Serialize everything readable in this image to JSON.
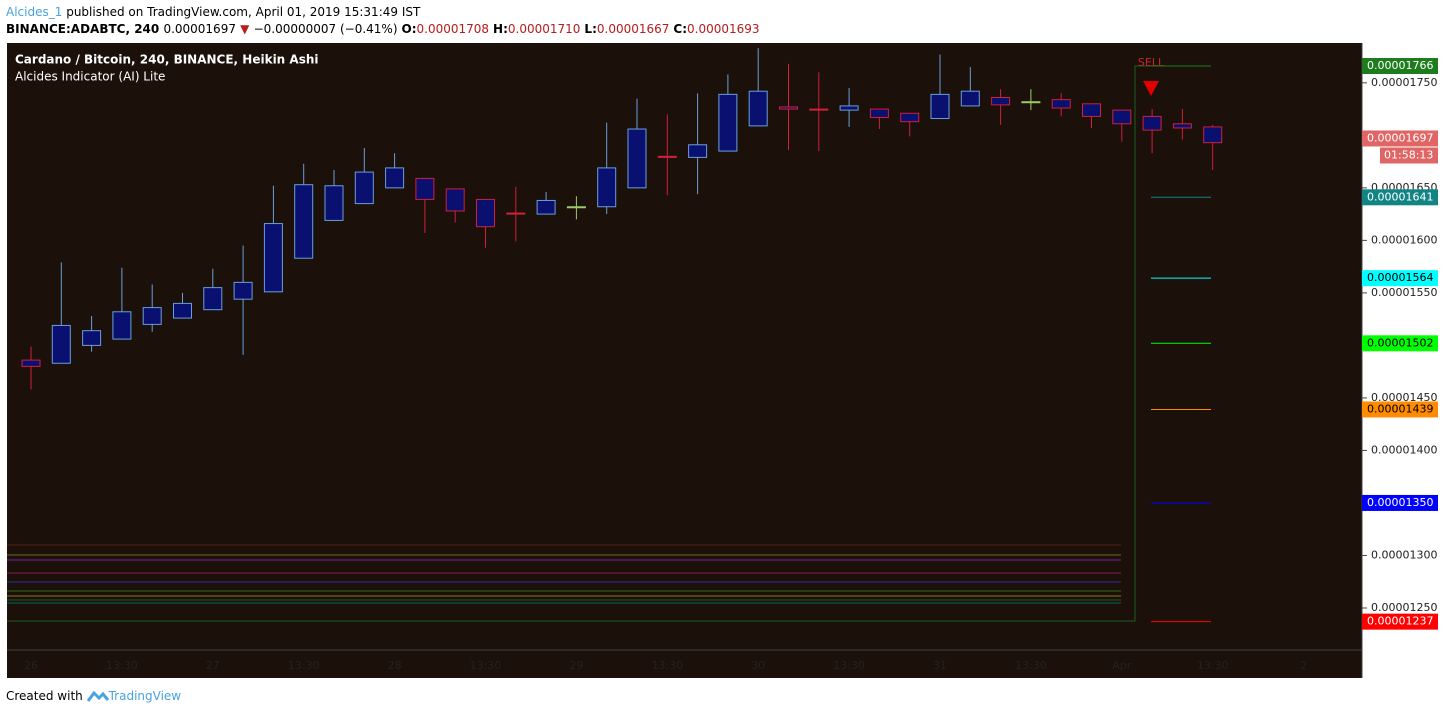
{
  "header": {
    "author": "Alcides_1",
    "published": "published on TradingView.com, April 01, 2019 15:31:49 IST",
    "symbol": "BINANCE:ADABTC, 240",
    "last": "0.00001697",
    "arrow": "▼",
    "change": "−0.00000007 (−0.41%)",
    "ohlc": [
      {
        "label": "O:",
        "value": "0.00001708"
      },
      {
        "label": "H:",
        "value": "0.00001710"
      },
      {
        "label": "L:",
        "value": "0.00001667"
      },
      {
        "label": "C:",
        "value": "0.00001693"
      }
    ]
  },
  "legend": [
    "Cardano / Bitcoin, 240, BINANCE, Heikin Ashi",
    "Alcides Indicator (AI) Lite"
  ],
  "footer": {
    "text": "Created with",
    "brand": "TradingView"
  },
  "chart_data": {
    "type": "candlestick",
    "categories": [
      "26",
      null,
      null,
      "13:30",
      null,
      null,
      "27",
      null,
      null,
      "13:30",
      null,
      null,
      "28",
      null,
      null,
      "13:30",
      null,
      null,
      "29",
      null,
      null,
      "13:30",
      null,
      null,
      "30",
      null,
      null,
      "13:30",
      null,
      null,
      "31",
      null,
      null,
      "13:30",
      null,
      null,
      "Apr",
      null,
      null,
      "13:30",
      null,
      null,
      "2"
    ],
    "open": [
      1.486e-05,
      1.483e-05,
      1.5e-05,
      1.506e-05,
      1.52e-05,
      1.526e-05,
      1.534e-05,
      1.544e-05,
      1.551e-05,
      1.583e-05,
      1.619e-05,
      1.635e-05,
      1.65e-05,
      1.659e-05,
      1.649e-05,
      1.639e-05,
      1.626e-05,
      1.625e-05,
      1.632e-05,
      1.632e-05,
      1.65e-05,
      1.68e-05,
      1.679e-05,
      1.685e-05,
      1.709e-05,
      1.727e-05,
      1.725e-05,
      1.724e-05,
      1.725e-05,
      1.721e-05,
      1.716e-05,
      1.728e-05,
      1.736e-05,
      1.732e-05,
      1.734e-05,
      1.73e-05,
      1.724e-05,
      1.718e-05,
      1.711e-05,
      1.708e-05,
      null,
      null,
      null
    ],
    "high": [
      1.499e-05,
      1.579e-05,
      1.528e-05,
      1.574e-05,
      1.558e-05,
      1.55e-05,
      1.573e-05,
      1.595e-05,
      1.652e-05,
      1.673e-05,
      1.667e-05,
      1.688e-05,
      1.683e-05,
      1.659e-05,
      1.649e-05,
      1.639e-05,
      1.651e-05,
      1.646e-05,
      1.642e-05,
      1.712e-05,
      1.735e-05,
      1.72e-05,
      1.74e-05,
      1.758e-05,
      1.783e-05,
      1.768e-05,
      1.76e-05,
      1.745e-05,
      1.725e-05,
      1.721e-05,
      1.777e-05,
      1.765e-05,
      1.744e-05,
      1.744e-05,
      1.74e-05,
      1.73e-05,
      1.724e-05,
      1.725e-05,
      1.725e-05,
      1.71e-05,
      null,
      null,
      null
    ],
    "low": [
      1.458e-05,
      1.483e-05,
      1.494e-05,
      1.506e-05,
      1.513e-05,
      1.526e-05,
      1.534e-05,
      1.491e-05,
      1.551e-05,
      1.583e-05,
      1.619e-05,
      1.635e-05,
      1.65e-05,
      1.607e-05,
      1.617e-05,
      1.593e-05,
      1.599e-05,
      1.625e-05,
      1.62e-05,
      1.625e-05,
      1.65e-05,
      1.643e-05,
      1.644e-05,
      1.685e-05,
      1.709e-05,
      1.686e-05,
      1.685e-05,
      1.708e-05,
      1.706e-05,
      1.699e-05,
      1.716e-05,
      1.728e-05,
      1.71e-05,
      1.724e-05,
      1.718e-05,
      1.707e-05,
      1.694e-05,
      1.683e-05,
      1.696e-05,
      1.667e-05,
      null,
      null,
      null
    ],
    "close": [
      1.48e-05,
      1.519e-05,
      1.514e-05,
      1.532e-05,
      1.536e-05,
      1.54e-05,
      1.555e-05,
      1.56e-05,
      1.616e-05,
      1.653e-05,
      1.652e-05,
      1.665e-05,
      1.669e-05,
      1.639e-05,
      1.628e-05,
      1.613e-05,
      1.625e-05,
      1.638e-05,
      1.632e-05,
      1.669e-05,
      1.706e-05,
      1.679e-05,
      1.691e-05,
      1.739e-05,
      1.742e-05,
      1.725e-05,
      1.724e-05,
      1.728e-05,
      1.717e-05,
      1.713e-05,
      1.739e-05,
      1.742e-05,
      1.729e-05,
      1.732e-05,
      1.726e-05,
      1.718e-05,
      1.711e-05,
      1.705e-05,
      1.707e-05,
      1.693e-05,
      null,
      null,
      null
    ],
    "up_color": "#6a9fd8",
    "down_color": "#d0203a",
    "doji_color": "#9ccc65",
    "body_fill": "#0a1070",
    "ylim": [
      1.21e-05,
      1.786e-05
    ],
    "yticks": [
      {
        "value": 1.75e-05,
        "label": "0.00001750"
      },
      {
        "value": 1.65e-05,
        "label": "0.00001650"
      },
      {
        "value": 1.6e-05,
        "label": "0.00001600"
      },
      {
        "value": 1.55e-05,
        "label": "0.00001550"
      },
      {
        "value": 1.45e-05,
        "label": "0.00001450"
      },
      {
        "value": 1.4e-05,
        "label": "0.00001400"
      },
      {
        "value": 1.3e-05,
        "label": "0.00001300"
      },
      {
        "value": 1.25e-05,
        "label": "0.00001250"
      }
    ],
    "levels": [
      {
        "value": 1.766e-05,
        "label": "0.00001766",
        "color": "#1e7b1e"
      },
      {
        "value": 1.641e-05,
        "label": "0.00001641",
        "color": "#138484"
      },
      {
        "value": 1.564e-05,
        "label": "0.00001564",
        "color": "#00ffff"
      },
      {
        "value": 1.502e-05,
        "label": "0.00001502",
        "color": "#00ff00"
      },
      {
        "value": 1.439e-05,
        "label": "0.00001439",
        "color": "#ff8c00"
      },
      {
        "value": 1.35e-05,
        "label": "0.00001350",
        "color": "#0000ff"
      },
      {
        "value": 1.237e-05,
        "label": "0.00001237",
        "color": "#ff0000"
      }
    ],
    "last_price": {
      "value": 1.697e-05,
      "label": "0.00001697",
      "countdown": "01:58:13",
      "color": "#e06666"
    },
    "signal": "SELL"
  }
}
